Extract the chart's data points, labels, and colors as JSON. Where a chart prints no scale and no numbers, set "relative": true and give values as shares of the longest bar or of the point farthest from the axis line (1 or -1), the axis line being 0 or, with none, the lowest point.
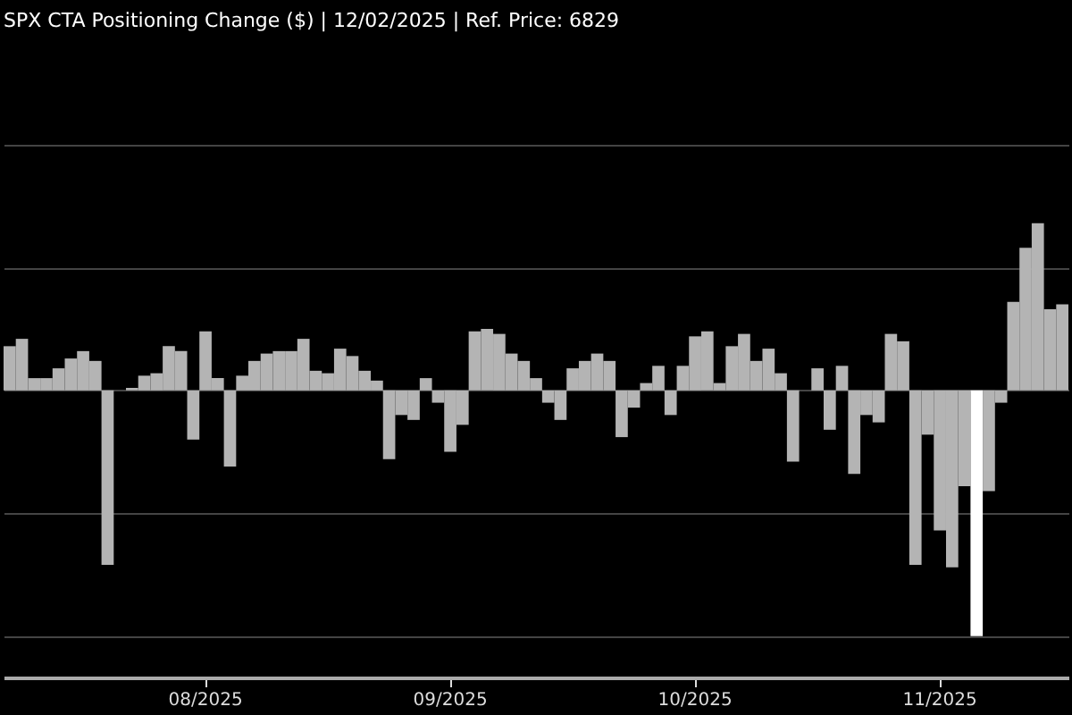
{
  "chart_data": {
    "type": "bar",
    "title": "SPX CTA Positioning Change ($) | 12/02/2025 | Ref. Price: 6829",
    "relative": true,
    "grid": "y",
    "categories": [
      null,
      null,
      null,
      null,
      null,
      null,
      null,
      null,
      null,
      null,
      null,
      null,
      null,
      null,
      null,
      null,
      "08/2025",
      null,
      null,
      null,
      null,
      null,
      null,
      null,
      null,
      null,
      null,
      null,
      null,
      null,
      null,
      null,
      null,
      null,
      null,
      null,
      "09/2025",
      null,
      null,
      null,
      null,
      null,
      null,
      null,
      null,
      null,
      null,
      null,
      null,
      null,
      null,
      null,
      null,
      null,
      null,
      null,
      "10/2025",
      null,
      null,
      null,
      null,
      null,
      null,
      null,
      null,
      null,
      null,
      null,
      null,
      null,
      null,
      null,
      null,
      null,
      null,
      null,
      "11/2025",
      null,
      null,
      null,
      null,
      null,
      null,
      null,
      null,
      null,
      null
    ],
    "values": [
      0.18,
      0.21,
      0.05,
      0.05,
      0.09,
      0.13,
      0.16,
      0.12,
      -0.71,
      0,
      0.01,
      0.06,
      0.07,
      0.18,
      0.16,
      -0.2,
      0.24,
      0.05,
      -0.31,
      0.06,
      0.12,
      0.15,
      0.16,
      0.16,
      0.21,
      0.08,
      0.07,
      0.17,
      0.14,
      0.08,
      0.04,
      -0.28,
      -0.1,
      -0.12,
      0.05,
      -0.05,
      -0.25,
      -0.14,
      0.24,
      0.25,
      0.23,
      0.15,
      0.12,
      0.05,
      -0.05,
      -0.12,
      0.09,
      0.12,
      0.15,
      0.12,
      -0.19,
      -0.07,
      0.03,
      0.1,
      -0.1,
      0.1,
      0.22,
      0.24,
      0.03,
      0.18,
      0.23,
      0.12,
      0.17,
      0.07,
      -0.29,
      0,
      0.09,
      -0.16,
      0.1,
      -0.34,
      -0.1,
      -0.13,
      0.23,
      0.2,
      -0.71,
      -0.18,
      -0.57,
      -0.72,
      -0.39,
      -1,
      -0.41,
      -0.05,
      0.36,
      0.58,
      0.68,
      0.33,
      0.35
    ],
    "colors": [
      "#b4b4b4",
      "#b4b4b4",
      "#b4b4b4",
      "#b4b4b4",
      "#b4b4b4",
      "#b4b4b4",
      "#b4b4b4",
      "#b4b4b4",
      "#b4b4b4",
      "#b4b4b4",
      "#b4b4b4",
      "#b4b4b4",
      "#b4b4b4",
      "#b4b4b4",
      "#b4b4b4",
      "#b4b4b4",
      "#b4b4b4",
      "#b4b4b4",
      "#b4b4b4",
      "#b4b4b4",
      "#b4b4b4",
      "#b4b4b4",
      "#b4b4b4",
      "#b4b4b4",
      "#b4b4b4",
      "#b4b4b4",
      "#b4b4b4",
      "#b4b4b4",
      "#b4b4b4",
      "#b4b4b4",
      "#b4b4b4",
      "#b4b4b4",
      "#b4b4b4",
      "#b4b4b4",
      "#b4b4b4",
      "#b4b4b4",
      "#b4b4b4",
      "#b4b4b4",
      "#b4b4b4",
      "#b4b4b4",
      "#b4b4b4",
      "#b4b4b4",
      "#b4b4b4",
      "#b4b4b4",
      "#b4b4b4",
      "#b4b4b4",
      "#b4b4b4",
      "#b4b4b4",
      "#b4b4b4",
      "#b4b4b4",
      "#b4b4b4",
      "#b4b4b4",
      "#b4b4b4",
      "#b4b4b4",
      "#b4b4b4",
      "#b4b4b4",
      "#b4b4b4",
      "#b4b4b4",
      "#b4b4b4",
      "#b4b4b4",
      "#b4b4b4",
      "#b4b4b4",
      "#b4b4b4",
      "#b4b4b4",
      "#b4b4b4",
      "#b4b4b4",
      "#b4b4b4",
      "#b4b4b4",
      "#b4b4b4",
      "#b4b4b4",
      "#b4b4b4",
      "#b4b4b4",
      "#b4b4b4",
      "#b4b4b4",
      "#b4b4b4",
      "#b4b4b4",
      "#b4b4b4",
      "#b4b4b4",
      "#b4b4b4",
      "#ffffff",
      "#b4b4b4",
      "#b4b4b4",
      "#b4b4b4",
      "#b4b4b4",
      "#b4b4b4",
      "#b4b4b4",
      "#b4b4b4"
    ]
  }
}
